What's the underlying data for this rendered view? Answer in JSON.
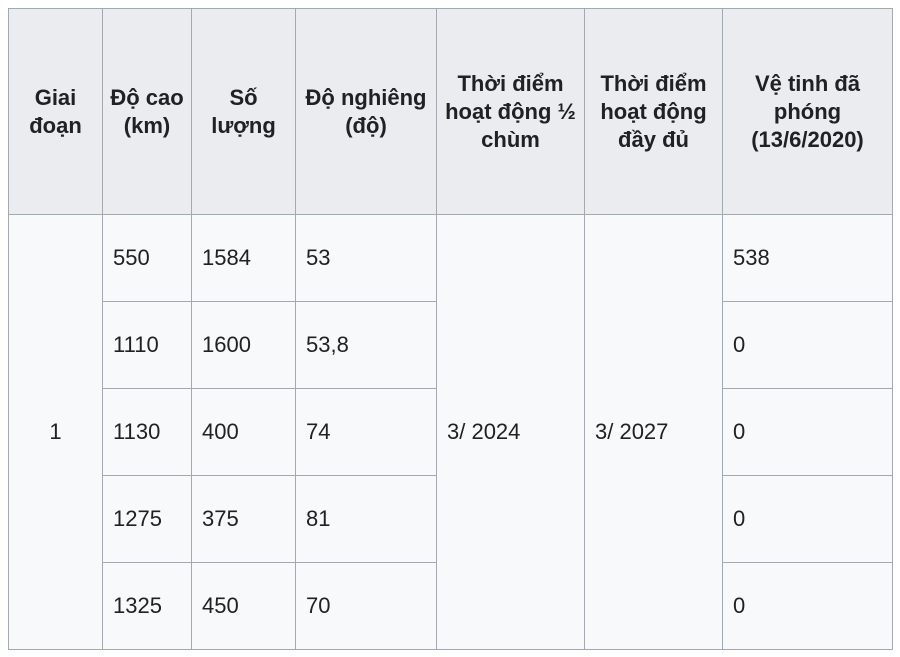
{
  "table": {
    "header": [
      "Giai đoạn",
      "Độ cao (km)",
      "Số lượng",
      "Độ nghiêng (độ)",
      "Thời điểm hoạt động ½ chùm",
      "Thời điểm hoạt động đầy đủ",
      "Vệ tinh đã phóng (13/6/2020)"
    ],
    "rows": [
      [
        "1",
        "550",
        "1584",
        "53",
        "3/ 2024",
        "3/ 2027",
        "538"
      ],
      [
        "1110",
        "1600",
        "53,8",
        "0"
      ],
      [
        "1130",
        "400",
        "74",
        "0"
      ],
      [
        "1275",
        "375",
        "81",
        "0"
      ],
      [
        "1325",
        "450",
        "70",
        "0"
      ]
    ]
  }
}
